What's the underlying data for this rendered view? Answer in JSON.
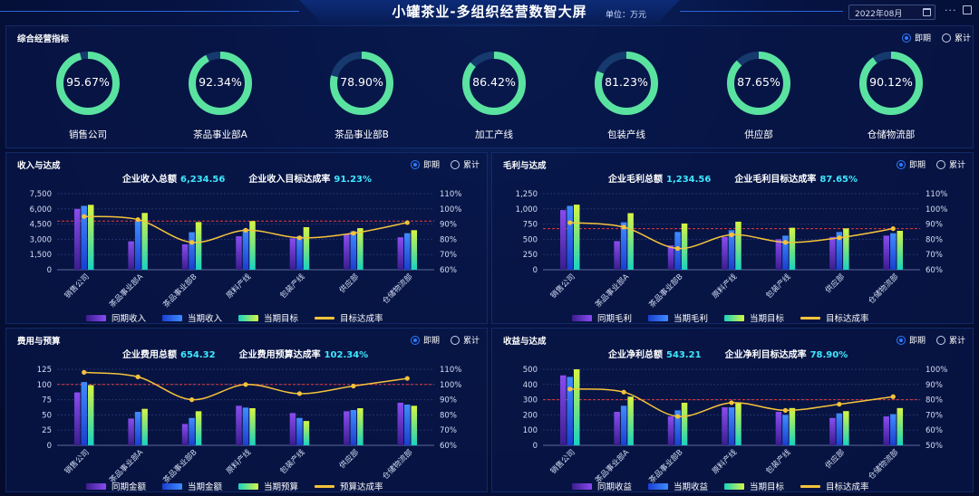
{
  "header": {
    "title": "小罐茶业-多组织经营数智大屏",
    "unit": "单位：万元",
    "date": "2022年08月"
  },
  "radio": {
    "current": "即期",
    "cumulative": "累计"
  },
  "kpi_panel": {
    "title": "综合经营指标",
    "items": [
      {
        "label": "销售公司",
        "value": "95.67%",
        "pct": 95.67
      },
      {
        "label": "茶品事业部A",
        "value": "92.34%",
        "pct": 92.34
      },
      {
        "label": "茶品事业部B",
        "value": "78.90%",
        "pct": 78.9
      },
      {
        "label": "加工产线",
        "value": "86.42%",
        "pct": 86.42
      },
      {
        "label": "包装产线",
        "value": "81.23%",
        "pct": 81.23
      },
      {
        "label": "供应部",
        "value": "87.65%",
        "pct": 87.65
      },
      {
        "label": "仓储物流部",
        "value": "90.12%",
        "pct": 90.12
      }
    ]
  },
  "colors": {
    "ring": "#5ae3a0",
    "ring_track": "#163a6e",
    "bar_prev": "#6a35c8",
    "bar_cur": "#2b63ff",
    "bar_target": "#33f3c6",
    "rate_line": "#f5c33b",
    "ref_line": "#e53a3a"
  },
  "chart_data": [
    {
      "type": "bar",
      "title": "收入与达成",
      "summary_total_label": "企业收入总额",
      "summary_total": "6,234.56",
      "summary_rate_label": "企业收入目标达成率",
      "summary_rate": "91.23%",
      "categories": [
        "销售公司",
        "茶品事业部A",
        "茶品事业部B",
        "原料产线",
        "包装产线",
        "供应部",
        "仓储物流部"
      ],
      "yticks": [
        "0",
        "1,500",
        "3,000",
        "4,500",
        "6,000",
        "7,500"
      ],
      "ylim": [
        0,
        7500
      ],
      "y2ticks": [
        "60%",
        "70%",
        "80%",
        "90%",
        "100%",
        "110%"
      ],
      "y2lim": [
        60,
        110
      ],
      "reference_rate": 92,
      "series": [
        {
          "name": "同期收入",
          "values": [
            6000,
            2800,
            2500,
            3300,
            3100,
            3500,
            3200
          ]
        },
        {
          "name": "当期收入",
          "values": [
            6300,
            4800,
            3700,
            4000,
            3300,
            3800,
            3600
          ]
        },
        {
          "name": "当期目标",
          "values": [
            6400,
            5600,
            4700,
            4800,
            4200,
            4100,
            3900
          ]
        },
        {
          "name": "目标达成率",
          "values": [
            95,
            93,
            78,
            86,
            81,
            84,
            91
          ]
        }
      ]
    },
    {
      "type": "bar",
      "title": "毛利与达成",
      "summary_total_label": "企业毛利总额",
      "summary_total": "1,234.56",
      "summary_rate_label": "企业毛利目标达成率",
      "summary_rate": "87.65%",
      "categories": [
        "销售公司",
        "茶品事业部A",
        "茶品事业部B",
        "原料产线",
        "包装产线",
        "供应部",
        "仓储物流部"
      ],
      "yticks": [
        "0",
        "250",
        "500",
        "750",
        "1,000",
        "1,250"
      ],
      "ylim": [
        0,
        1250
      ],
      "y2ticks": [
        "60%",
        "70%",
        "80%",
        "90%",
        "100%",
        "110%"
      ],
      "y2lim": [
        60,
        110
      ],
      "reference_rate": 87,
      "series": [
        {
          "name": "同期毛利",
          "values": [
            980,
            470,
            400,
            540,
            500,
            540,
            560
          ]
        },
        {
          "name": "当期毛利",
          "values": [
            1050,
            780,
            620,
            650,
            560,
            620,
            600
          ]
        },
        {
          "name": "当期目标",
          "values": [
            1070,
            930,
            760,
            790,
            690,
            680,
            640
          ]
        },
        {
          "name": "目标达成率",
          "values": [
            91,
            88,
            74,
            83,
            78,
            81,
            87
          ]
        }
      ]
    },
    {
      "type": "bar",
      "title": "费用与预算",
      "summary_total_label": "企业费用总额",
      "summary_total": "654.32",
      "summary_rate_label": "企业费用预算达成率",
      "summary_rate": "102.34%",
      "categories": [
        "销售公司",
        "茶品事业部A",
        "茶品事业部B",
        "原料产线",
        "包装产线",
        "供应部",
        "仓储物流部"
      ],
      "yticks": [
        "0",
        "25",
        "50",
        "75",
        "100",
        "125"
      ],
      "ylim": [
        0,
        125
      ],
      "y2ticks": [
        "60%",
        "70%",
        "80%",
        "90%",
        "100%",
        "110%"
      ],
      "y2lim": [
        60,
        110
      ],
      "reference_rate": 100,
      "series": [
        {
          "name": "同期金额",
          "values": [
            87,
            44,
            35,
            65,
            53,
            56,
            70
          ]
        },
        {
          "name": "当期金额",
          "values": [
            104,
            55,
            45,
            62,
            45,
            58,
            67
          ]
        },
        {
          "name": "当期预算",
          "values": [
            99,
            60,
            56,
            61,
            40,
            61,
            65
          ]
        },
        {
          "name": "预算达成率",
          "values": [
            108,
            105,
            90,
            100,
            94,
            99,
            104
          ]
        }
      ]
    },
    {
      "type": "bar",
      "title": "收益与达成",
      "summary_total_label": "企业净利总额",
      "summary_total": "543.21",
      "summary_rate_label": "企业净利目标达成率",
      "summary_rate": "78.90%",
      "categories": [
        "销售公司",
        "茶品事业部A",
        "茶品事业部B",
        "原料产线",
        "包装产线",
        "供应部",
        "仓储物流部"
      ],
      "yticks": [
        "0",
        "100",
        "200",
        "300",
        "400",
        "500"
      ],
      "ylim": [
        0,
        500
      ],
      "y2ticks": [
        "50%",
        "60%",
        "70%",
        "80%",
        "90%",
        "100%"
      ],
      "y2lim": [
        50,
        100
      ],
      "reference_rate": 80,
      "series": [
        {
          "name": "同期收益",
          "values": [
            460,
            220,
            190,
            250,
            220,
            180,
            190
          ]
        },
        {
          "name": "当期收益",
          "values": [
            450,
            260,
            230,
            250,
            200,
            210,
            205
          ]
        },
        {
          "name": "当期目标",
          "values": [
            500,
            320,
            280,
            280,
            245,
            225,
            245
          ]
        },
        {
          "name": "目标达成率",
          "values": [
            87,
            85,
            69,
            78,
            73,
            77,
            82
          ]
        }
      ]
    }
  ]
}
